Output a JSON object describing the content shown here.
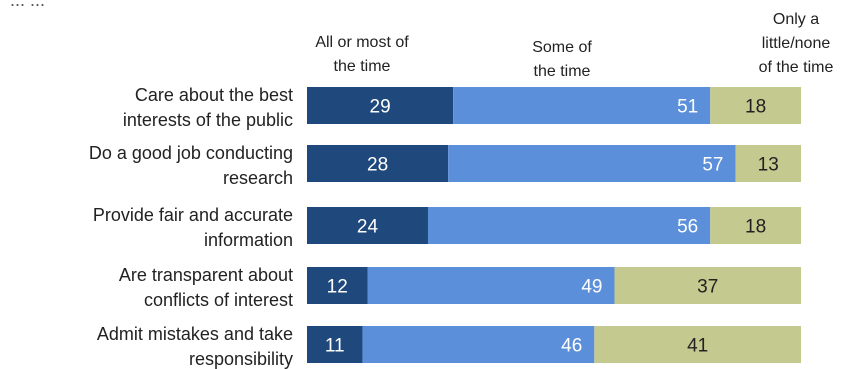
{
  "chart_data": {
    "type": "bar",
    "orientation": "horizontal",
    "stacked": true,
    "title_partial": "... ...",
    "categories": [
      [
        "Care about the best",
        "interests of the public"
      ],
      [
        "Do a good job conducting",
        "research"
      ],
      [
        "Provide fair and accurate",
        "information"
      ],
      [
        "Are transparent about",
        "conflicts of interest"
      ],
      [
        "Admit mistakes and take",
        "responsibility"
      ]
    ],
    "series": [
      {
        "name": "All or most of the time",
        "header_lines": [
          "All or most of",
          "the time"
        ],
        "color": "#1f497d",
        "label_color": "#ffffff",
        "values": [
          29,
          28,
          24,
          12,
          11
        ]
      },
      {
        "name": "Some of the time",
        "header_lines": [
          "Some of",
          "the time"
        ],
        "color": "#5b8fd9",
        "label_color": "#ffffff",
        "values": [
          51,
          57,
          56,
          49,
          46
        ]
      },
      {
        "name": "Only a little/none of the time",
        "header_lines": [
          "Only a",
          "little/none",
          "of the time"
        ],
        "color": "#c4c98f",
        "label_color": "#222222",
        "values": [
          18,
          13,
          18,
          37,
          41
        ]
      }
    ],
    "grid": false,
    "legend": "column headers above bars"
  }
}
